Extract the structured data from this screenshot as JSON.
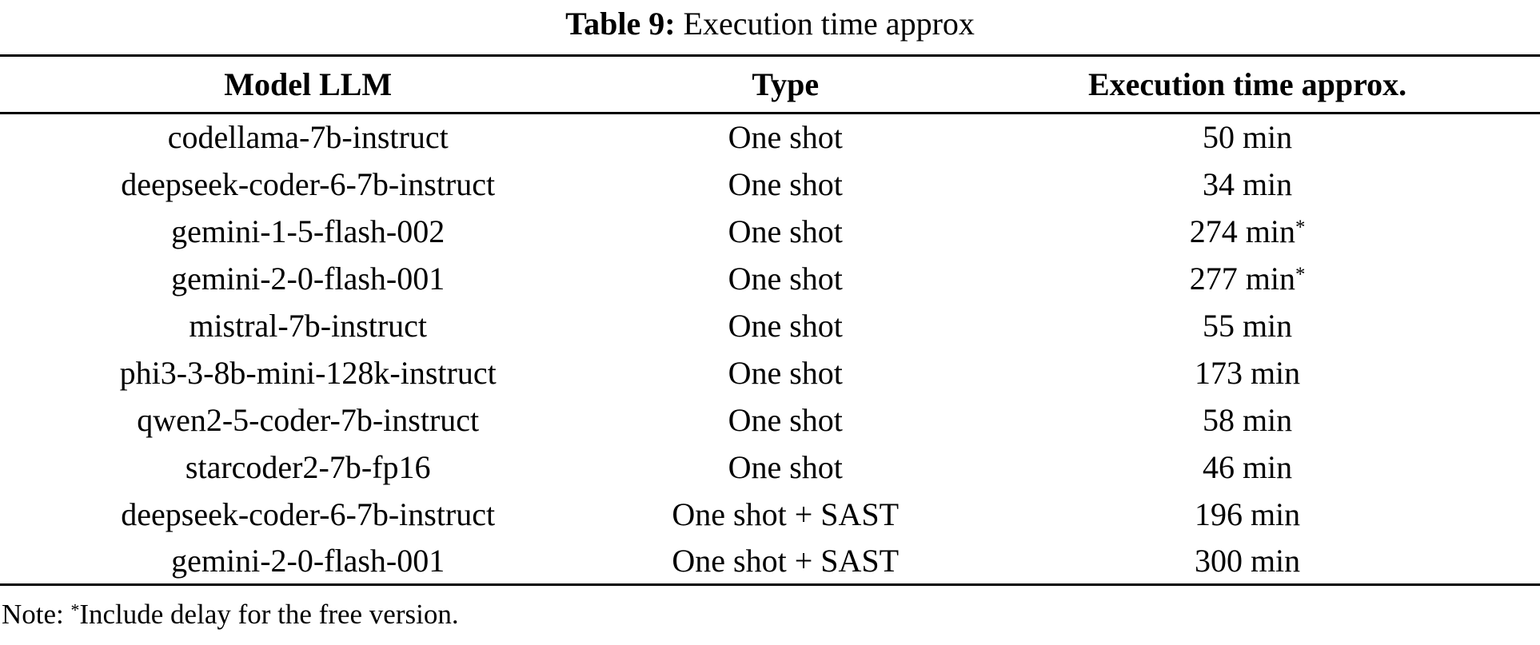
{
  "page": {
    "background_color": "#ffffff",
    "text_color": "#000000",
    "rule_color": "#000000"
  },
  "caption": {
    "label": "Table 9:",
    "title": "Execution time approx"
  },
  "table": {
    "columns": [
      "Model LLM",
      "Type",
      "Execution time approx."
    ],
    "rows": [
      {
        "model": "codellama-7b-instruct",
        "type": "One shot",
        "time": "50 min",
        "star": ""
      },
      {
        "model": "deepseek-coder-6-7b-instruct",
        "type": "One shot",
        "time": "34 min",
        "star": ""
      },
      {
        "model": "gemini-1-5-flash-002",
        "type": "One shot",
        "time": "274 min",
        "star": "*"
      },
      {
        "model": "gemini-2-0-flash-001",
        "type": "One shot",
        "time": "277 min",
        "star": "*"
      },
      {
        "model": "mistral-7b-instruct",
        "type": "One shot",
        "time": "55 min",
        "star": ""
      },
      {
        "model": "phi3-3-8b-mini-128k-instruct",
        "type": "One shot",
        "time": "173 min",
        "star": ""
      },
      {
        "model": "qwen2-5-coder-7b-instruct",
        "type": "One shot",
        "time": "58 min",
        "star": ""
      },
      {
        "model": "starcoder2-7b-fp16",
        "type": "One shot",
        "time": "46 min",
        "star": ""
      },
      {
        "model": "deepseek-coder-6-7b-instruct",
        "type": "One shot + SAST",
        "time": "196 min",
        "star": ""
      },
      {
        "model": "gemini-2-0-flash-001",
        "type": "One shot + SAST",
        "time": "300 min",
        "star": ""
      }
    ]
  },
  "note": {
    "prefix": "Note: ",
    "star": "*",
    "text": "Include delay for the free version."
  }
}
